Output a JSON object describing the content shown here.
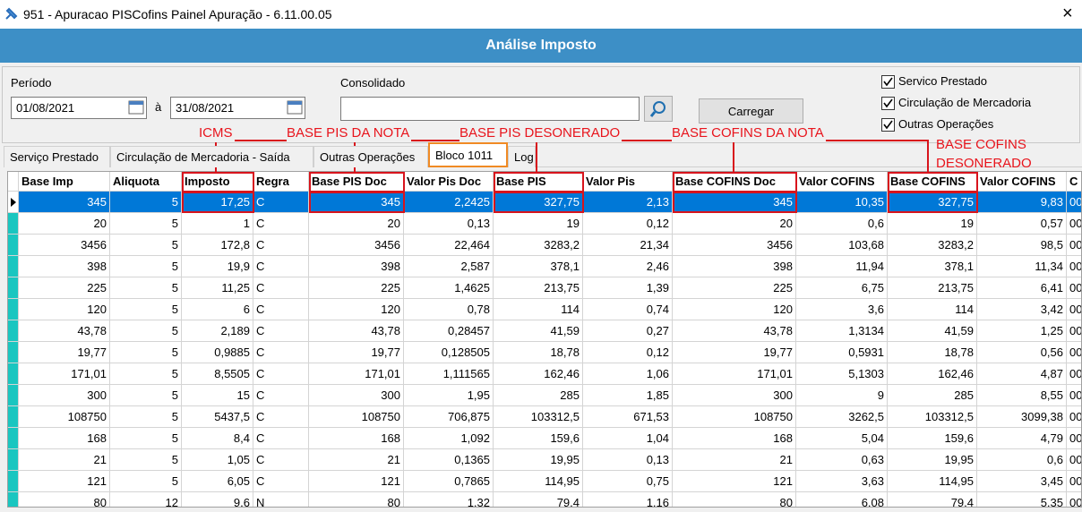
{
  "window": {
    "title": "951 - Apuracao PISCofins Painel Apuração - 6.11.00.05",
    "close": "×"
  },
  "header": {
    "title": "Análise Imposto"
  },
  "filters": {
    "period_label": "Período",
    "start_date": "01/08/2021",
    "separator": "à",
    "end_date": "31/08/2021",
    "consolidated_label": "Consolidado",
    "load_button": "Carregar",
    "checkboxes": [
      {
        "label": "Servico Prestado",
        "checked": true
      },
      {
        "label": "Circulação de Mercadoria",
        "checked": true
      },
      {
        "label": "Outras Operações",
        "checked": true
      }
    ]
  },
  "tabs": {
    "items": [
      "Serviço Prestado",
      "Circulação de Mercadoria - Saída",
      "Outras Operações",
      "Bloco 1011",
      "Log"
    ],
    "selected": 3
  },
  "annotations": [
    "ICMS",
    "BASE PIS DA NOTA",
    "BASE PIS DESONERADO",
    "BASE COFINS DA NOTA",
    "BASE COFINS DESONERADO"
  ],
  "table": {
    "columns": [
      "Base Imp",
      "Aliquota",
      "Imposto",
      "Regra",
      "Base PIS Doc",
      "Valor Pis Doc",
      "Base PIS",
      "Valor Pis",
      "Base COFINS Doc",
      "Valor COFINS",
      "Base COFINS",
      "Valor COFINS",
      "C"
    ],
    "selected_row": 0,
    "rows": [
      [
        "345",
        "5",
        "17,25",
        "C",
        "345",
        "2,2425",
        "327,75",
        "2,13",
        "345",
        "10,35",
        "327,75",
        "9,83",
        "00"
      ],
      [
        "20",
        "5",
        "1",
        "C",
        "20",
        "0,13",
        "19",
        "0,12",
        "20",
        "0,6",
        "19",
        "0,57",
        "00"
      ],
      [
        "3456",
        "5",
        "172,8",
        "C",
        "3456",
        "22,464",
        "3283,2",
        "21,34",
        "3456",
        "103,68",
        "3283,2",
        "98,5",
        "00"
      ],
      [
        "398",
        "5",
        "19,9",
        "C",
        "398",
        "2,587",
        "378,1",
        "2,46",
        "398",
        "11,94",
        "378,1",
        "11,34",
        "00"
      ],
      [
        "225",
        "5",
        "11,25",
        "C",
        "225",
        "1,4625",
        "213,75",
        "1,39",
        "225",
        "6,75",
        "213,75",
        "6,41",
        "00"
      ],
      [
        "120",
        "5",
        "6",
        "C",
        "120",
        "0,78",
        "114",
        "0,74",
        "120",
        "3,6",
        "114",
        "3,42",
        "00"
      ],
      [
        "43,78",
        "5",
        "2,189",
        "C",
        "43,78",
        "0,28457",
        "41,59",
        "0,27",
        "43,78",
        "1,3134",
        "41,59",
        "1,25",
        "00"
      ],
      [
        "19,77",
        "5",
        "0,9885",
        "C",
        "19,77",
        "0,128505",
        "18,78",
        "0,12",
        "19,77",
        "0,5931",
        "18,78",
        "0,56",
        "00"
      ],
      [
        "171,01",
        "5",
        "8,5505",
        "C",
        "171,01",
        "1,111565",
        "162,46",
        "1,06",
        "171,01",
        "5,1303",
        "162,46",
        "4,87",
        "00"
      ],
      [
        "300",
        "5",
        "15",
        "C",
        "300",
        "1,95",
        "285",
        "1,85",
        "300",
        "9",
        "285",
        "8,55",
        "00"
      ],
      [
        "108750",
        "5",
        "5437,5",
        "C",
        "108750",
        "706,875",
        "103312,5",
        "671,53",
        "108750",
        "3262,5",
        "103312,5",
        "3099,38",
        "00"
      ],
      [
        "168",
        "5",
        "8,4",
        "C",
        "168",
        "1,092",
        "159,6",
        "1,04",
        "168",
        "5,04",
        "159,6",
        "4,79",
        "00"
      ],
      [
        "21",
        "5",
        "1,05",
        "C",
        "21",
        "0,1365",
        "19,95",
        "0,13",
        "21",
        "0,63",
        "19,95",
        "0,6",
        "00"
      ],
      [
        "121",
        "5",
        "6,05",
        "C",
        "121",
        "0,7865",
        "114,95",
        "0,75",
        "121",
        "3,63",
        "114,95",
        "3,45",
        "00"
      ],
      [
        "80",
        "12",
        "9,6",
        "N",
        "80",
        "1,32",
        "79,4",
        "1,16",
        "80",
        "6,08",
        "79,4",
        "5,35",
        "00"
      ]
    ]
  }
}
